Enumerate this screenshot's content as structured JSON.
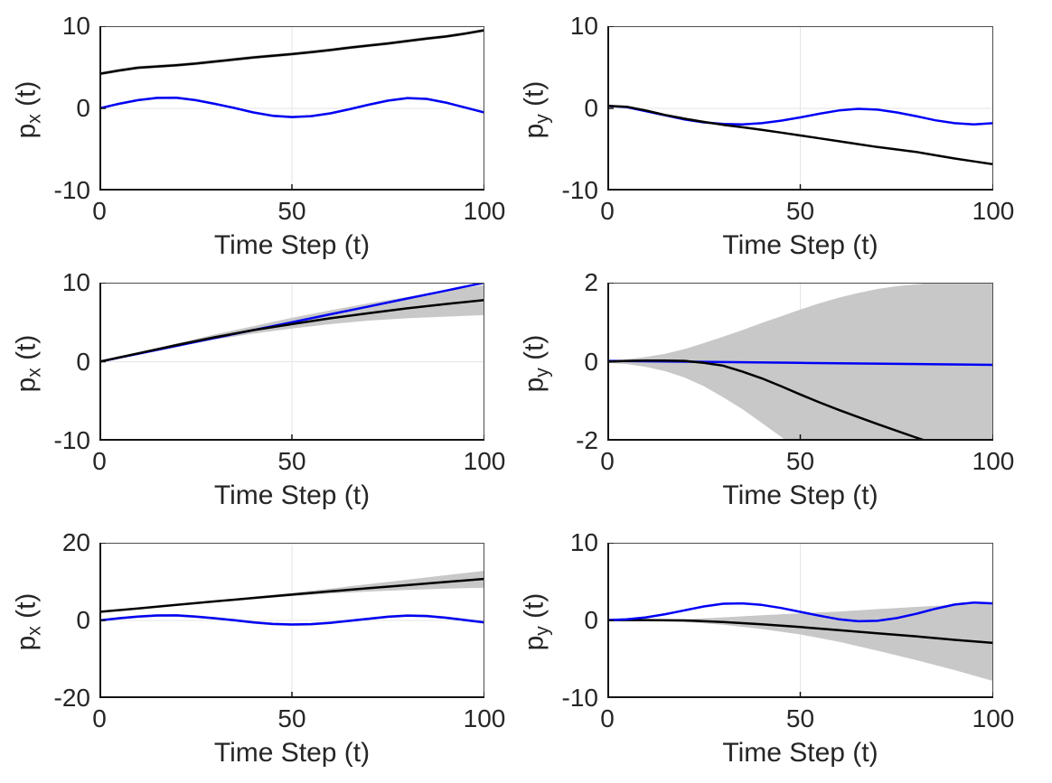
{
  "figure": {
    "background": "#ffffff"
  },
  "colors": {
    "mean_line": "#000000",
    "reference_line": "#0000f5",
    "uncertainty_band": "#c8c8c8",
    "grid": "#e6e6e6",
    "axis_box": "#4d4d4d",
    "axis_main": "#141414",
    "tick_text": "#262626"
  },
  "chart_data": [
    {
      "type": "line",
      "ylabel": "p_x (t)",
      "ylabel_main": "p",
      "ylabel_sub": "x",
      "ylabel_suffix": " (t)",
      "xlabel": "Time Step (t)",
      "xlim": [
        0,
        100
      ],
      "ylim": [
        -10,
        10
      ],
      "xticks": [
        "0",
        "50",
        "100"
      ],
      "yticks": [
        "10",
        "0",
        "-10"
      ],
      "grid": true,
      "legend": "none",
      "bands": [
        {
          "x": [
            0,
            5,
            10,
            15,
            20,
            25,
            30,
            35,
            40,
            45,
            50,
            55,
            60,
            65,
            70,
            75,
            80,
            85,
            90,
            95,
            100
          ],
          "upper": [
            4.4,
            4.8,
            5.15,
            5.3,
            5.45,
            5.65,
            5.9,
            6.15,
            6.4,
            6.6,
            6.8,
            7.05,
            7.3,
            7.6,
            7.85,
            8.1,
            8.4,
            8.7,
            8.95,
            9.3,
            9.7
          ],
          "lower": [
            4.0,
            4.4,
            4.75,
            4.9,
            5.05,
            5.25,
            5.5,
            5.75,
            6.0,
            6.2,
            6.4,
            6.65,
            6.9,
            7.2,
            7.45,
            7.7,
            8.0,
            8.3,
            8.55,
            8.9,
            9.3
          ]
        },
        {
          "x": [
            0,
            5,
            10,
            15,
            20,
            25,
            30,
            35,
            40,
            45,
            50,
            55,
            60,
            65,
            70,
            75,
            80,
            85,
            90,
            95,
            100
          ],
          "upper": [
            0.15,
            0.7,
            1.15,
            1.43,
            1.45,
            1.15,
            0.7,
            0.2,
            -0.35,
            -0.75,
            -0.9,
            -0.8,
            -0.45,
            0.05,
            0.6,
            1.1,
            1.4,
            1.3,
            0.85,
            0.25,
            -0.35
          ],
          "lower": [
            -0.15,
            0.4,
            0.85,
            1.13,
            1.15,
            0.85,
            0.4,
            -0.1,
            -0.65,
            -1.05,
            -1.2,
            -1.1,
            -0.75,
            -0.25,
            0.3,
            0.8,
            1.1,
            1.0,
            0.55,
            -0.05,
            -0.65
          ]
        }
      ],
      "series": [
        {
          "color": "#0000f5",
          "x": [
            0,
            5,
            10,
            15,
            20,
            25,
            30,
            35,
            40,
            45,
            50,
            55,
            60,
            65,
            70,
            75,
            80,
            85,
            90,
            95,
            100
          ],
          "y": [
            0,
            0.55,
            1.0,
            1.28,
            1.3,
            1.0,
            0.55,
            0.05,
            -0.5,
            -0.9,
            -1.05,
            -0.95,
            -0.6,
            -0.1,
            0.45,
            0.95,
            1.25,
            1.15,
            0.7,
            0.1,
            -0.5
          ]
        },
        {
          "color": "#000000",
          "x": [
            0,
            5,
            10,
            15,
            20,
            25,
            30,
            35,
            40,
            45,
            50,
            55,
            60,
            65,
            70,
            75,
            80,
            85,
            90,
            95,
            100
          ],
          "y": [
            4.2,
            4.6,
            4.95,
            5.1,
            5.25,
            5.45,
            5.7,
            5.95,
            6.2,
            6.4,
            6.6,
            6.85,
            7.1,
            7.4,
            7.65,
            7.9,
            8.2,
            8.5,
            8.75,
            9.1,
            9.5
          ]
        }
      ]
    },
    {
      "type": "line",
      "ylabel": "p_y (t)",
      "ylabel_main": "p",
      "ylabel_sub": "y",
      "ylabel_suffix": " (t)",
      "xlabel": "Time Step (t)",
      "xlim": [
        0,
        100
      ],
      "ylim": [
        -10,
        10
      ],
      "xticks": [
        "0",
        "50",
        "100"
      ],
      "yticks": [
        "10",
        "0",
        "-10"
      ],
      "grid": true,
      "legend": "none",
      "bands": [],
      "series": [
        {
          "color": "#0000f5",
          "x": [
            0,
            5,
            10,
            15,
            20,
            25,
            30,
            35,
            40,
            45,
            50,
            55,
            60,
            65,
            70,
            75,
            80,
            85,
            90,
            95,
            100
          ],
          "y": [
            0.3,
            0.15,
            -0.35,
            -0.85,
            -1.35,
            -1.7,
            -1.9,
            -1.95,
            -1.8,
            -1.5,
            -1.1,
            -0.65,
            -0.25,
            -0.05,
            -0.15,
            -0.5,
            -0.95,
            -1.45,
            -1.8,
            -1.95,
            -1.8
          ]
        },
        {
          "color": "#000000",
          "x": [
            0,
            5,
            10,
            15,
            20,
            25,
            30,
            35,
            40,
            45,
            50,
            55,
            60,
            65,
            70,
            75,
            80,
            85,
            90,
            95,
            100
          ],
          "y": [
            0.3,
            0.2,
            -0.25,
            -0.8,
            -1.25,
            -1.65,
            -2.0,
            -2.3,
            -2.6,
            -2.95,
            -3.3,
            -3.65,
            -4.0,
            -4.35,
            -4.7,
            -5.0,
            -5.3,
            -5.7,
            -6.1,
            -6.45,
            -6.8
          ]
        }
      ]
    },
    {
      "type": "line",
      "ylabel": "p_x (t)",
      "ylabel_main": "p",
      "ylabel_sub": "x",
      "ylabel_suffix": " (t)",
      "xlabel": "Time Step (t)",
      "xlim": [
        0,
        100
      ],
      "ylim": [
        -10,
        10
      ],
      "xticks": [
        "0",
        "50",
        "100"
      ],
      "yticks": [
        "10",
        "0",
        "-10"
      ],
      "grid": true,
      "legend": "none",
      "bands": [
        {
          "x": [
            0,
            10,
            20,
            30,
            40,
            50,
            60,
            70,
            80,
            90,
            100
          ],
          "upper": [
            0.05,
            1.15,
            2.3,
            3.45,
            4.5,
            5.55,
            6.5,
            7.4,
            8.2,
            9.0,
            9.7
          ],
          "lower": [
            -0.05,
            0.95,
            1.9,
            2.8,
            3.55,
            4.2,
            4.75,
            5.2,
            5.5,
            5.7,
            5.9
          ]
        }
      ],
      "series": [
        {
          "color": "#0000f5",
          "x": [
            0,
            10,
            20,
            30,
            40,
            50,
            60,
            70,
            80,
            90,
            100
          ],
          "y": [
            0,
            1,
            2,
            3,
            4,
            5,
            6,
            7,
            8,
            9,
            10
          ]
        },
        {
          "color": "#000000",
          "x": [
            0,
            10,
            20,
            30,
            40,
            50,
            60,
            70,
            80,
            90,
            100
          ],
          "y": [
            0,
            1.05,
            2.1,
            3.1,
            4.0,
            4.75,
            5.5,
            6.15,
            6.75,
            7.3,
            7.8
          ]
        }
      ]
    },
    {
      "type": "line",
      "ylabel": "p_y (t)",
      "ylabel_main": "p",
      "ylabel_sub": "y",
      "ylabel_suffix": " (t)",
      "xlabel": "Time Step (t)",
      "xlim": [
        0,
        100
      ],
      "ylim": [
        -2,
        2
      ],
      "xticks": [
        "0",
        "50",
        "100"
      ],
      "yticks": [
        "2",
        "0",
        "-2"
      ],
      "grid": true,
      "legend": "none",
      "bands": [
        {
          "x": [
            0,
            5,
            10,
            15,
            20,
            25,
            30,
            35,
            40,
            45,
            50,
            55,
            60,
            65,
            70,
            75,
            80,
            85,
            90,
            95,
            100
          ],
          "upper": [
            0.03,
            0.06,
            0.12,
            0.2,
            0.32,
            0.47,
            0.63,
            0.8,
            0.98,
            1.15,
            1.32,
            1.48,
            1.62,
            1.74,
            1.84,
            1.91,
            1.96,
            2.0,
            2.02,
            2.03,
            2.03
          ],
          "lower": [
            -0.03,
            -0.06,
            -0.13,
            -0.24,
            -0.4,
            -0.62,
            -0.9,
            -1.2,
            -1.55,
            -1.9,
            -2.3,
            -2.3,
            -2.3,
            -2.3,
            -2.3,
            -2.3,
            -2.3,
            -2.3,
            -2.3,
            -2.3,
            -2.3
          ]
        }
      ],
      "series": [
        {
          "color": "#0000f5",
          "x": [
            0,
            50,
            100
          ],
          "y": [
            0.02,
            -0.03,
            -0.08
          ]
        },
        {
          "color": "#000000",
          "x": [
            0,
            5,
            10,
            15,
            20,
            25,
            30,
            35,
            40,
            45,
            50,
            55,
            60,
            65,
            70,
            75,
            80,
            85,
            90
          ],
          "y": [
            0,
            0.02,
            0.03,
            0.03,
            0.02,
            -0.03,
            -0.1,
            -0.25,
            -0.42,
            -0.62,
            -0.83,
            -1.03,
            -1.22,
            -1.4,
            -1.58,
            -1.75,
            -1.92,
            -2.08,
            -2.3
          ]
        }
      ]
    },
    {
      "type": "line",
      "ylabel": "p_x (t)",
      "ylabel_main": "p",
      "ylabel_sub": "x",
      "ylabel_suffix": " (t)",
      "xlabel": "Time Step (t)",
      "xlim": [
        0,
        100
      ],
      "ylim": [
        -20,
        20
      ],
      "xticks": [
        "0",
        "50",
        "100"
      ],
      "yticks": [
        "20",
        "0",
        "-20"
      ],
      "grid": true,
      "legend": "none",
      "bands": [
        {
          "x": [
            0,
            10,
            20,
            30,
            40,
            50,
            60,
            70,
            80,
            90,
            100
          ],
          "upper": [
            2.25,
            3.2,
            4.15,
            5.1,
            6.1,
            7.1,
            8.2,
            9.35,
            10.5,
            11.65,
            12.8
          ],
          "lower": [
            2.15,
            3.0,
            3.85,
            4.7,
            5.5,
            6.25,
            6.9,
            7.45,
            7.85,
            8.2,
            8.4
          ]
        },
        {
          "x": [
            0,
            5,
            10,
            15,
            20,
            25,
            30,
            35,
            40,
            45,
            50,
            55,
            60,
            65,
            70,
            75,
            80,
            85,
            90,
            95,
            100
          ],
          "upper": [
            0.35,
            0.9,
            1.35,
            1.63,
            1.65,
            1.35,
            0.9,
            0.4,
            -0.15,
            -0.55,
            -0.7,
            -0.6,
            -0.25,
            0.25,
            0.8,
            1.3,
            1.6,
            1.5,
            1.05,
            0.45,
            -0.15
          ],
          "lower": [
            -0.35,
            0.2,
            0.65,
            0.93,
            0.95,
            0.65,
            0.2,
            -0.3,
            -0.85,
            -1.25,
            -1.4,
            -1.3,
            -0.95,
            -0.45,
            0.1,
            0.6,
            0.9,
            0.8,
            0.35,
            -0.25,
            -0.85
          ]
        }
      ],
      "series": [
        {
          "color": "#0000f5",
          "x": [
            0,
            5,
            10,
            15,
            20,
            25,
            30,
            35,
            40,
            45,
            50,
            55,
            60,
            65,
            70,
            75,
            80,
            85,
            90,
            95,
            100
          ],
          "y": [
            0,
            0.55,
            1.0,
            1.28,
            1.3,
            1.0,
            0.55,
            0.05,
            -0.5,
            -0.9,
            -1.05,
            -0.95,
            -0.6,
            -0.1,
            0.45,
            0.95,
            1.25,
            1.15,
            0.7,
            0.1,
            -0.5
          ]
        },
        {
          "color": "#000000",
          "x": [
            0,
            10,
            20,
            30,
            40,
            50,
            60,
            70,
            80,
            90,
            100
          ],
          "y": [
            2.2,
            3.1,
            4.0,
            4.9,
            5.8,
            6.65,
            7.5,
            8.3,
            9.1,
            9.9,
            10.7
          ]
        }
      ]
    },
    {
      "type": "line",
      "ylabel": "p_y (t)",
      "ylabel_main": "p",
      "ylabel_sub": "y",
      "ylabel_suffix": " (t)",
      "xlabel": "Time Step (t)",
      "xlim": [
        0,
        100
      ],
      "ylim": [
        -10,
        10
      ],
      "xticks": [
        "0",
        "50",
        "100"
      ],
      "yticks": [
        "10",
        "0",
        "-10"
      ],
      "grid": true,
      "legend": "none",
      "bands": [
        {
          "x": [
            0,
            10,
            20,
            30,
            40,
            50,
            60,
            70,
            80,
            90,
            100
          ],
          "upper": [
            0.05,
            0.08,
            0.15,
            0.4,
            0.67,
            0.92,
            1.15,
            1.45,
            1.75,
            2.0,
            2.15
          ],
          "lower": [
            0.0,
            -0.05,
            -0.2,
            -0.55,
            -1.1,
            -1.8,
            -2.75,
            -3.9,
            -5.1,
            -6.4,
            -7.8
          ]
        }
      ],
      "series": [
        {
          "color": "#000000",
          "x": [
            0,
            10,
            20,
            30,
            40,
            50,
            60,
            70,
            80,
            90,
            100
          ],
          "y": [
            0.05,
            0.05,
            0.0,
            -0.2,
            -0.5,
            -0.85,
            -1.25,
            -1.65,
            -2.05,
            -2.5,
            -2.9
          ]
        },
        {
          "color": "#0000f5",
          "x": [
            0,
            5,
            10,
            15,
            20,
            25,
            30,
            35,
            40,
            45,
            50,
            55,
            60,
            65,
            70,
            75,
            80,
            85,
            90,
            95,
            100
          ],
          "y": [
            0.05,
            0.15,
            0.4,
            0.8,
            1.3,
            1.8,
            2.15,
            2.2,
            2.0,
            1.6,
            1.1,
            0.6,
            0.15,
            -0.1,
            -0.05,
            0.3,
            0.85,
            1.5,
            2.05,
            2.3,
            2.2
          ]
        }
      ]
    }
  ]
}
